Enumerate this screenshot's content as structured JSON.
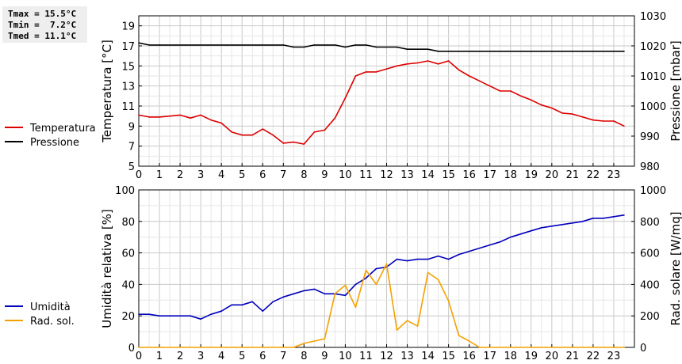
{
  "stats": {
    "tmax": "Tmax = 15.5°C",
    "tmin": "Tmin =  7.2°C",
    "tmed": "Tmed = 11.1°C"
  },
  "colors": {
    "temperature": "#dd0000",
    "pressure": "#000000",
    "humidity": "#0000bb",
    "radiation": "#f5a000",
    "grid_major": "#c8c8c8",
    "grid_minor": "#e6e6e6"
  },
  "chart_data": [
    {
      "type": "line",
      "xlabel": "",
      "ylabel": "Temperatura [°C]",
      "y2label": "Pressione [mbar]",
      "xlim": [
        0,
        24
      ],
      "ylim": [
        5,
        20
      ],
      "y2lim": [
        980,
        1030
      ],
      "x_ticks": [
        "0",
        "1",
        "2",
        "3",
        "4",
        "5",
        "6",
        "7",
        "8",
        "9",
        "10",
        "11",
        "12",
        "13",
        "14",
        "15",
        "16",
        "17",
        "18",
        "19",
        "20",
        "21",
        "22",
        "23"
      ],
      "y_ticks": [
        "5",
        "7",
        "9",
        "11",
        "13",
        "15",
        "17",
        "19"
      ],
      "y2_ticks": [
        "980",
        "990",
        "1000",
        "1010",
        "1020",
        "1030"
      ],
      "grid": true,
      "legend": "left",
      "series": [
        {
          "name": "Temperatura",
          "axis": "left",
          "x": [
            0,
            0.5,
            1,
            1.5,
            2,
            2.5,
            3,
            3.5,
            4,
            4.5,
            5,
            5.5,
            6,
            6.5,
            7,
            7.5,
            8,
            8.5,
            9,
            9.5,
            10,
            10.5,
            11,
            11.5,
            12,
            12.5,
            13,
            13.5,
            14,
            14.5,
            15,
            15.5,
            16,
            16.5,
            17,
            17.5,
            18,
            18.5,
            19,
            19.5,
            20,
            20.5,
            21,
            21.5,
            22,
            22.5,
            23,
            23.5
          ],
          "values": [
            10.1,
            9.9,
            9.9,
            10.0,
            10.1,
            9.8,
            10.1,
            9.6,
            9.3,
            8.4,
            8.1,
            8.1,
            8.7,
            8.1,
            7.3,
            7.4,
            7.2,
            8.4,
            8.6,
            9.8,
            11.8,
            14.0,
            14.4,
            14.4,
            14.7,
            15.0,
            15.2,
            15.3,
            15.5,
            15.2,
            15.5,
            14.6,
            14.0,
            13.5,
            13.0,
            12.5,
            12.5,
            12.0,
            11.6,
            11.1,
            10.8,
            10.3,
            10.2,
            9.9,
            9.6,
            9.5,
            9.5,
            9.0
          ]
        },
        {
          "name": "Pressione",
          "axis": "right",
          "x": [
            0,
            0.5,
            1,
            7,
            7.5,
            8,
            8.5,
            9.5,
            10,
            10.5,
            11,
            11.5,
            12.5,
            13,
            14,
            14.5,
            15,
            23.5
          ],
          "values": [
            1021,
            1020.3,
            1020.3,
            1020.3,
            1019.6,
            1019.6,
            1020.3,
            1020.3,
            1019.6,
            1020.3,
            1020.3,
            1019.6,
            1019.6,
            1018.9,
            1018.9,
            1018.2,
            1018.2,
            1018.2
          ]
        }
      ]
    },
    {
      "type": "line",
      "xlabel": "",
      "ylabel": "Umidità relativa [%]",
      "y2label": "Rad. solare [W/mq]",
      "xlim": [
        0,
        24
      ],
      "ylim": [
        0,
        100
      ],
      "y2lim": [
        0,
        1000
      ],
      "x_ticks": [
        "0",
        "1",
        "2",
        "3",
        "4",
        "5",
        "6",
        "7",
        "8",
        "9",
        "10",
        "11",
        "12",
        "13",
        "14",
        "15",
        "16",
        "17",
        "18",
        "19",
        "20",
        "21",
        "22",
        "23"
      ],
      "y_ticks": [
        "0",
        "20",
        "40",
        "60",
        "80",
        "100"
      ],
      "y2_ticks": [
        "0",
        "200",
        "400",
        "600",
        "800",
        "1000"
      ],
      "grid": true,
      "legend": "left",
      "series": [
        {
          "name": "Umidità",
          "axis": "left",
          "x": [
            0,
            0.5,
            1,
            1.5,
            2,
            2.5,
            3,
            3.5,
            4,
            4.5,
            5,
            5.5,
            6,
            6.5,
            7,
            7.5,
            8,
            8.5,
            9,
            9.5,
            10,
            10.5,
            11,
            11.5,
            12,
            12.5,
            13,
            13.5,
            14,
            14.5,
            15,
            15.5,
            16,
            16.5,
            17,
            17.5,
            18,
            18.5,
            19,
            19.5,
            20,
            20.5,
            21,
            21.5,
            22,
            22.5,
            23,
            23.5
          ],
          "values": [
            21,
            21,
            20,
            20,
            20,
            20,
            18,
            21,
            23,
            27,
            27,
            29,
            23,
            29,
            32,
            34,
            36,
            37,
            34,
            34,
            33,
            40,
            44,
            50,
            51,
            56,
            55,
            56,
            56,
            58,
            56,
            59,
            61,
            63,
            65,
            67,
            70,
            72,
            74,
            76,
            77,
            78,
            79,
            80,
            82,
            82,
            83,
            84
          ]
        },
        {
          "name": "Rad. sol.",
          "axis": "right",
          "x": [
            0,
            7.5,
            8,
            9,
            9.5,
            10,
            10.5,
            11,
            11.5,
            12,
            12.5,
            13,
            13.5,
            14,
            14.5,
            15,
            15.5,
            16,
            16.5,
            23.5
          ],
          "values": [
            0,
            0,
            25,
            55,
            340,
            395,
            255,
            490,
            400,
            530,
            110,
            170,
            135,
            475,
            430,
            295,
            75,
            40,
            0,
            0
          ]
        }
      ]
    }
  ]
}
